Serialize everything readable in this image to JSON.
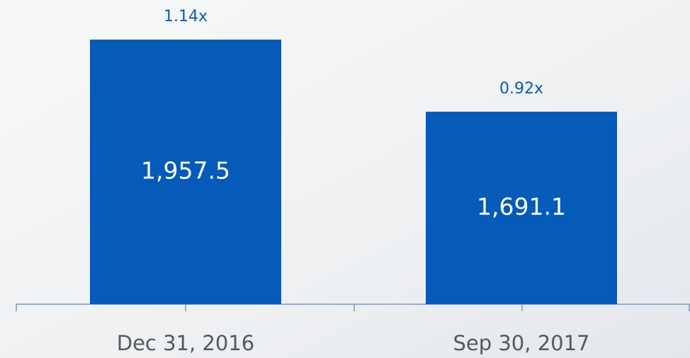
{
  "chart_data": {
    "type": "bar",
    "categories": [
      "Dec 31, 2016",
      "Sep 30, 2017"
    ],
    "values": [
      1957.5,
      1691.1
    ],
    "value_labels": [
      "1,957.5",
      "1,691.1"
    ],
    "annotations": [
      "1.14x",
      "0.92x"
    ],
    "color": "#065bb8",
    "ylim": [
      980,
      1960
    ]
  }
}
